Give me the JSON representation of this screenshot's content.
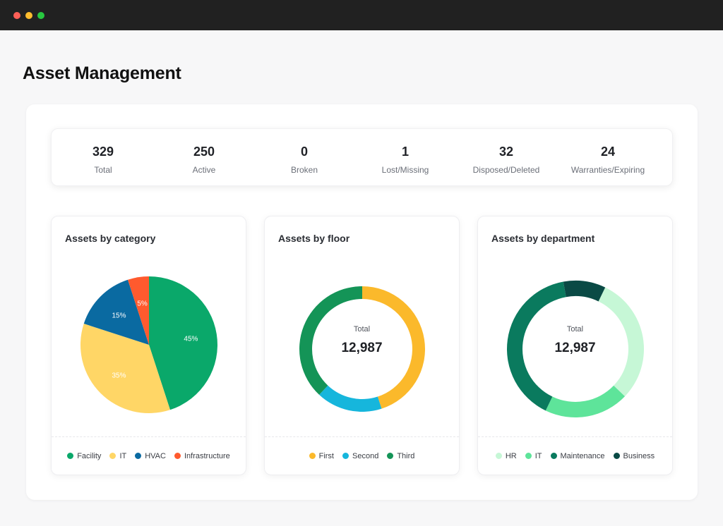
{
  "window": {
    "controls": [
      "close",
      "minimize",
      "maximize"
    ]
  },
  "page": {
    "title": "Asset Management"
  },
  "stats": [
    {
      "value": "329",
      "label": "Total"
    },
    {
      "value": "250",
      "label": "Active"
    },
    {
      "value": "0",
      "label": "Broken"
    },
    {
      "value": "1",
      "label": "Lost/Missing"
    },
    {
      "value": "32",
      "label": "Disposed/Deleted"
    },
    {
      "value": "24",
      "label": "Warranties/Expiring"
    }
  ],
  "cards": {
    "category": {
      "title": "Assets by category"
    },
    "floor": {
      "title": "Assets by floor",
      "total_caption": "Total",
      "total_value": "12,987"
    },
    "department": {
      "title": "Assets by department",
      "total_caption": "Total",
      "total_value": "12,987"
    }
  },
  "chart_data": [
    {
      "type": "pie",
      "title": "Assets by category",
      "series": [
        {
          "name": "Facility",
          "value": 45,
          "label": "45%",
          "color": "#0aa86a"
        },
        {
          "name": "IT",
          "value": 35,
          "label": "35%",
          "color": "#ffd666"
        },
        {
          "name": "HVAC",
          "value": 15,
          "label": "15%",
          "color": "#0a6aa1"
        },
        {
          "name": "Infrastructure",
          "value": 5,
          "label": "5%",
          "color": "#ff5a2e"
        }
      ]
    },
    {
      "type": "pie",
      "subtype": "donut",
      "title": "Assets by floor",
      "series": [
        {
          "name": "First",
          "value": 45,
          "color": "#fbb92b"
        },
        {
          "name": "Second",
          "value": 17,
          "color": "#16b6dc"
        },
        {
          "name": "Third",
          "value": 38,
          "color": "#149457"
        }
      ]
    },
    {
      "type": "pie",
      "subtype": "donut",
      "title": "Assets by department",
      "series": [
        {
          "name": "HR",
          "value": 30,
          "color": "#c6f7d6"
        },
        {
          "name": "IT",
          "value": 20,
          "color": "#5ee49a"
        },
        {
          "name": "Maintenance",
          "value": 40,
          "color": "#0a7a5e"
        },
        {
          "name": "Business",
          "value": 10,
          "color": "#0a4a45"
        }
      ]
    }
  ]
}
